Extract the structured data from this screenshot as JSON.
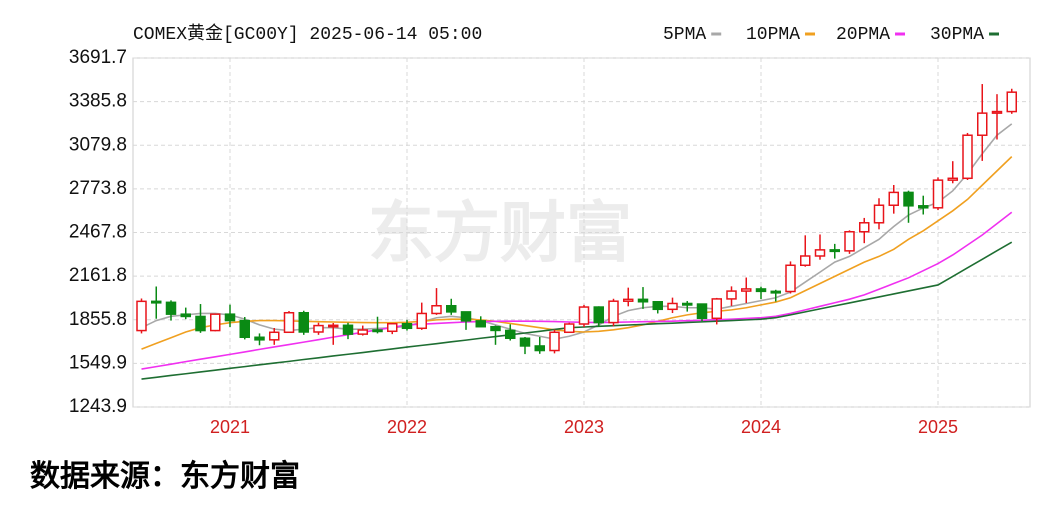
{
  "chart_data": {
    "type": "candlestick",
    "title": "COMEX黄金[GC00Y] 2025-06-14 05:00",
    "watermark": "东方财富",
    "source": "数据来源：东方财富",
    "up_color": "#e8141a",
    "down_color": "#0a8a14",
    "grid": true,
    "categories": [
      null,
      null,
      null,
      null,
      null,
      null,
      "2021",
      null,
      null,
      null,
      null,
      null,
      null,
      null,
      null,
      null,
      null,
      null,
      "2022",
      null,
      null,
      null,
      null,
      null,
      null,
      null,
      null,
      null,
      null,
      null,
      "2023",
      null,
      null,
      null,
      null,
      null,
      null,
      null,
      null,
      null,
      null,
      null,
      "2024",
      null,
      null,
      null,
      null,
      null,
      null,
      null,
      null,
      null,
      null,
      null,
      "2025",
      null,
      null,
      null,
      null,
      null
    ],
    "open": [
      1780,
      1985,
      1978,
      1895,
      1879,
      1780,
      1895,
      1850,
      1733,
      1715,
      1768,
      1905,
      1770,
      1815,
      1817,
      1755,
      1784,
      1775,
      1828,
      1796,
      1900,
      1954,
      1911,
      1848,
      1807,
      1781,
      1726,
      1672,
      1640,
      1768,
      1826,
      1945,
      1836,
      1986,
      1999,
      1982,
      1929,
      1970,
      1966,
      1866,
      2002,
      2057,
      2072,
      2055,
      2054,
      2238,
      2303,
      2346,
      2339,
      2473,
      2536,
      2659,
      2749,
      2655,
      2641,
      2835,
      2848,
      3150,
      3305,
      3316
    ],
    "high": [
      2005,
      2089,
      1992,
      1941,
      1966,
      1900,
      1962,
      1875,
      1760,
      1798,
      1917,
      1919,
      1835,
      1833,
      1835,
      1815,
      1877,
      1830,
      1855,
      1976,
      2078,
      2003,
      1910,
      1880,
      1815,
      1824,
      1735,
      1735,
      1787,
      1835,
      1960,
      1950,
      2003,
      2081,
      2085,
      1985,
      2011,
      1987,
      1953,
      2009,
      2090,
      2152,
      2088,
      2066,
      2265,
      2448,
      2454,
      2388,
      2483,
      2570,
      2708,
      2801,
      2761,
      2726,
      2854,
      2968,
      3166,
      3509,
      3438,
      3476
    ],
    "low": [
      1760,
      1863,
      1850,
      1860,
      1764,
      1775,
      1805,
      1718,
      1677,
      1680,
      1765,
      1750,
      1750,
      1680,
      1720,
      1745,
      1760,
      1755,
      1780,
      1785,
      1890,
      1890,
      1785,
      1805,
      1680,
      1710,
      1615,
      1617,
      1620,
      1765,
      1805,
      1805,
      1810,
      1950,
      1932,
      1900,
      1903,
      1913,
      1846,
      1823,
      1953,
      1973,
      2001,
      1984,
      2040,
      2228,
      2277,
      2285,
      2318,
      2393,
      2490,
      2600,
      2536,
      2594,
      2625,
      2813,
      2836,
      2970,
      3120,
      3300
    ],
    "close": [
      1985,
      1978,
      1895,
      1879,
      1780,
      1895,
      1850,
      1733,
      1715,
      1768,
      1905,
      1770,
      1815,
      1817,
      1755,
      1784,
      1775,
      1828,
      1796,
      1900,
      1954,
      1911,
      1848,
      1807,
      1781,
      1726,
      1672,
      1640,
      1768,
      1826,
      1945,
      1836,
      1986,
      1999,
      1982,
      1929,
      1970,
      1966,
      1866,
      2002,
      2057,
      2072,
      2055,
      2054,
      2238,
      2303,
      2346,
      2339,
      2473,
      2536,
      2659,
      2749,
      2655,
      2641,
      2835,
      2848,
      3150,
      3305,
      3316,
      3452
    ],
    "series": [
      {
        "name": "5PMA",
        "color": "#a8a8a8",
        "values": [
          1800,
          1850,
          1880,
          1890,
          1900,
          1900,
          1890,
          1860,
          1820,
          1790,
          1780,
          1790,
          1800,
          1800,
          1790,
          1790,
          1795,
          1800,
          1810,
          1840,
          1870,
          1880,
          1870,
          1850,
          1820,
          1790,
          1760,
          1740,
          1720,
          1740,
          1770,
          1820,
          1880,
          1920,
          1940,
          1950,
          1950,
          1940,
          1940,
          1930,
          1950,
          1970,
          1990,
          2010,
          2050,
          2120,
          2190,
          2260,
          2300,
          2360,
          2420,
          2510,
          2590,
          2640,
          2680,
          2760,
          2880,
          3020,
          3150,
          3230
        ]
      },
      {
        "name": "10PMA",
        "color": "#f0a020",
        "values": [
          1650,
          1690,
          1730,
          1770,
          1800,
          1820,
          1835,
          1845,
          1850,
          1850,
          1848,
          1845,
          1842,
          1840,
          1838,
          1836,
          1835,
          1835,
          1838,
          1845,
          1855,
          1860,
          1860,
          1855,
          1845,
          1830,
          1815,
          1800,
          1785,
          1775,
          1770,
          1775,
          1785,
          1800,
          1820,
          1845,
          1870,
          1890,
          1905,
          1915,
          1925,
          1940,
          1960,
          1980,
          2010,
          2060,
          2110,
          2160,
          2210,
          2260,
          2300,
          2350,
          2420,
          2480,
          2550,
          2620,
          2700,
          2800,
          2900,
          3000
        ]
      },
      {
        "name": "20PMA",
        "color": "#f030f0",
        "values": [
          1510,
          1527,
          1544,
          1562,
          1579,
          1596,
          1613,
          1630,
          1648,
          1665,
          1682,
          1699,
          1716,
          1734,
          1751,
          1768,
          1785,
          1802,
          1820,
          1825,
          1830,
          1835,
          1840,
          1843,
          1845,
          1846,
          1846,
          1845,
          1843,
          1840,
          1838,
          1836,
          1838,
          1840,
          1842,
          1844,
          1846,
          1849,
          1852,
          1856,
          1860,
          1865,
          1870,
          1880,
          1900,
          1925,
          1950,
          1975,
          2000,
          2030,
          2070,
          2110,
          2150,
          2200,
          2250,
          2310,
          2380,
          2450,
          2530,
          2610
        ]
      },
      {
        "name": "30PMA",
        "color": "#1e6e32",
        "values": [
          1440,
          1452,
          1465,
          1477,
          1490,
          1502,
          1515,
          1527,
          1540,
          1552,
          1564,
          1577,
          1589,
          1602,
          1614,
          1626,
          1639,
          1651,
          1664,
          1676,
          1688,
          1701,
          1713,
          1726,
          1738,
          1750,
          1763,
          1775,
          1788,
          1800,
          1805,
          1810,
          1814,
          1819,
          1823,
          1828,
          1832,
          1837,
          1841,
          1846,
          1850,
          1855,
          1860,
          1870,
          1890,
          1911,
          1932,
          1953,
          1974,
          1995,
          2016,
          2037,
          2058,
          2079,
          2100,
          2160,
          2220,
          2280,
          2340,
          2400
        ]
      }
    ],
    "ylim": [
      1243.9,
      3691.7
    ],
    "yticks": [
      1243.9,
      1549.9,
      1855.8,
      2161.8,
      2467.8,
      2773.8,
      3079.8,
      3385.8,
      3691.7
    ]
  }
}
